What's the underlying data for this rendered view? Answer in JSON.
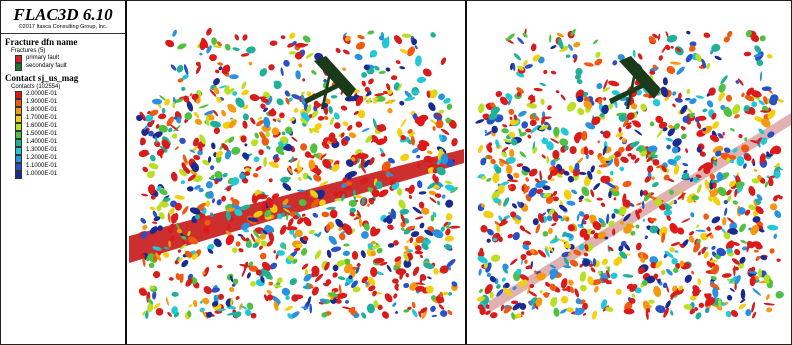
{
  "legend": {
    "app_title": "FLAC3D 6.10",
    "copyright": "©2017 Itasca Consulting Group, Inc.",
    "fracture_section": {
      "title": "Fracture dfn name",
      "subtitle": "Fractures (5)",
      "items": [
        {
          "label": "primary fault",
          "color": "#d82020"
        },
        {
          "label": "secondary fault",
          "color": "#1a7a2a"
        }
      ]
    },
    "contact_section": {
      "title": "Contact sj_us_mag",
      "subtitle": "Contacts (102554)",
      "items": [
        {
          "label": "2.0000E-01",
          "color": "#e01818"
        },
        {
          "label": "1.9000E-01",
          "color": "#f05a10"
        },
        {
          "label": "1.8000E-01",
          "color": "#f59a10"
        },
        {
          "label": "1.7000E-01",
          "color": "#f2d010"
        },
        {
          "label": "1.6000E-01",
          "color": "#b8e020"
        },
        {
          "label": "1.5000E-01",
          "color": "#50c040"
        },
        {
          "label": "1.4000E-01",
          "color": "#20b09a"
        },
        {
          "label": "1.3000E-01",
          "color": "#20c8d8"
        },
        {
          "label": "1.2000E-01",
          "color": "#2a90e0"
        },
        {
          "label": "1.1000E-01",
          "color": "#2a50c8"
        },
        {
          "label": "1.0000E-01",
          "color": "#1a2a90"
        }
      ]
    }
  },
  "views": {
    "left": {
      "seed": 11,
      "fault_color": "#c81818",
      "secondary_color": "#1a3a1a",
      "fault_opacity": 0.9
    },
    "right": {
      "seed": 29,
      "fault_color": "#a82020",
      "secondary_color": "#1a3a1a",
      "fault_opacity": 0.35
    }
  }
}
